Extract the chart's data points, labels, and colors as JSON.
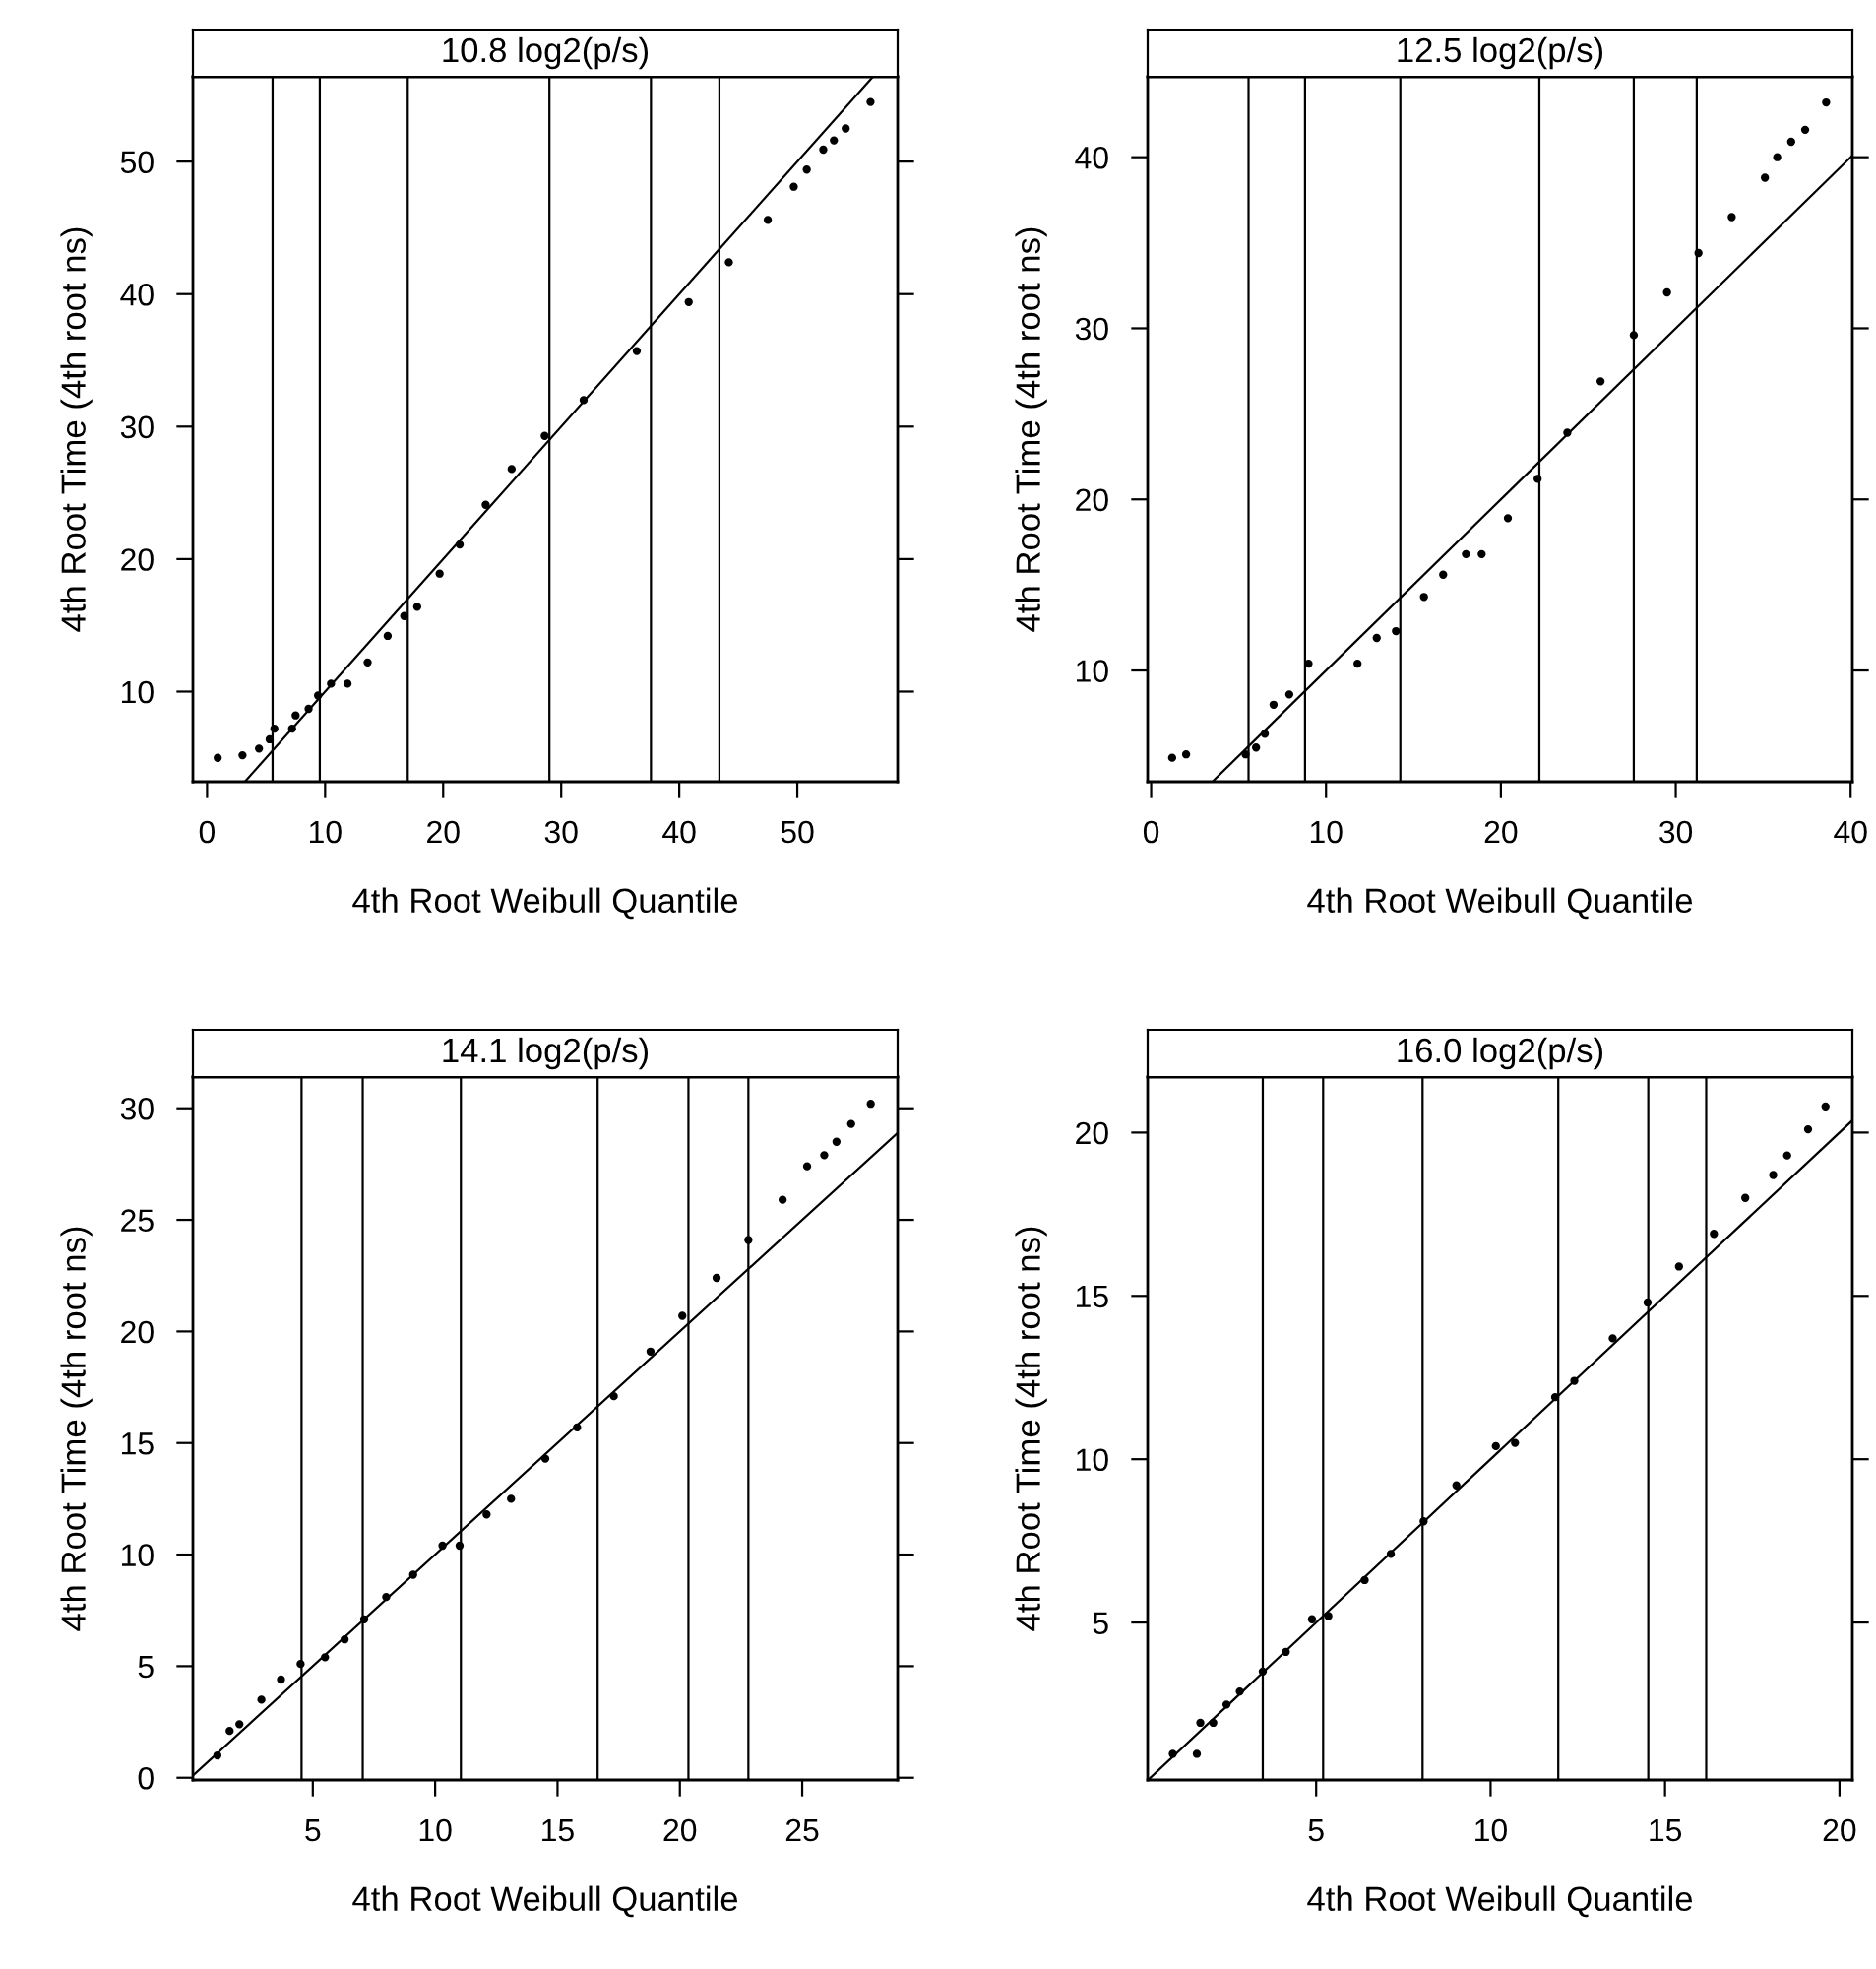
{
  "chart_data": [
    {
      "type": "scatter",
      "title": "10.8 log2(p/s)",
      "xlabel": "4th Root Weibull Quantile",
      "ylabel": "4th Root Time (4th root ns)",
      "xlim": [
        -1.2,
        58.5
      ],
      "ylim": [
        3.2,
        56.4
      ],
      "xticks": [
        0,
        10,
        20,
        30,
        40,
        50
      ],
      "yticks": [
        10,
        20,
        30,
        40,
        50
      ],
      "grid": false,
      "series": [
        {
          "marker": "circle",
          "color": "#000000",
          "x": [
            0.9,
            3.0,
            4.4,
            5.3,
            5.7,
            7.2,
            7.5,
            8.6,
            9.4,
            10.5,
            11.9,
            13.6,
            15.3,
            16.7,
            17.8,
            19.7,
            21.4,
            23.6,
            25.8,
            28.6,
            31.9,
            36.4,
            40.8,
            44.2,
            47.5,
            49.7,
            50.8,
            52.2,
            53.1,
            54.1,
            56.2
          ],
          "values": [
            5.0,
            5.2,
            5.7,
            6.4,
            7.2,
            7.2,
            8.2,
            8.7,
            9.7,
            10.6,
            10.6,
            12.2,
            14.2,
            15.7,
            16.4,
            18.9,
            21.1,
            24.1,
            26.8,
            29.3,
            32.0,
            35.7,
            39.4,
            42.4,
            45.6,
            48.1,
            49.4,
            50.9,
            51.6,
            52.5,
            54.5
          ]
        },
        {
          "type": "line",
          "marker": "none",
          "color": "#000000",
          "x": [
            3.2,
            56.4
          ],
          "values": [
            3.2,
            56.4
          ]
        }
      ],
      "ref_lines": [
        {
          "axis": "x",
          "value": 5.55
        },
        {
          "axis": "x",
          "value": 9.55
        },
        {
          "axis": "x",
          "value": 17.0
        },
        {
          "axis": "x",
          "value": 29.0
        },
        {
          "axis": "x",
          "value": 37.6
        },
        {
          "axis": "x",
          "value": 43.4
        }
      ]
    },
    {
      "type": "scatter",
      "title": "12.5 log2(p/s)",
      "xlabel": "4th Root Weibull Quantile",
      "ylabel": "4th Root Time (4th root ns)",
      "xlim": [
        -0.2,
        40.1
      ],
      "ylim": [
        3.5,
        44.7
      ],
      "xticks": [
        0,
        10,
        20,
        30,
        40
      ],
      "yticks": [
        10,
        20,
        30,
        40
      ],
      "grid": false,
      "series": [
        {
          "marker": "circle",
          "color": "#000000",
          "x": [
            1.2,
            2.0,
            5.4,
            6.0,
            6.5,
            7.0,
            7.9,
            9.0,
            11.8,
            12.9,
            14.0,
            15.6,
            16.7,
            18.0,
            18.9,
            20.4,
            22.1,
            23.8,
            25.7,
            27.6,
            29.5,
            31.3,
            33.2,
            35.1,
            35.8,
            36.6,
            37.4,
            38.6
          ],
          "values": [
            4.9,
            5.1,
            5.1,
            5.5,
            6.3,
            8.0,
            8.6,
            10.4,
            10.4,
            11.9,
            12.3,
            14.3,
            15.6,
            16.8,
            16.8,
            18.9,
            21.2,
            23.9,
            26.9,
            29.6,
            32.1,
            34.4,
            36.5,
            38.8,
            40.0,
            40.9,
            41.6,
            43.2
          ]
        },
        {
          "type": "line",
          "marker": "none",
          "color": "#000000",
          "x": [
            3.5,
            40.1
          ],
          "values": [
            3.5,
            40.1
          ]
        }
      ],
      "ref_lines": [
        {
          "axis": "x",
          "value": 5.57
        },
        {
          "axis": "x",
          "value": 8.8
        },
        {
          "axis": "x",
          "value": 14.25
        },
        {
          "axis": "x",
          "value": 22.2
        },
        {
          "axis": "x",
          "value": 27.6
        },
        {
          "axis": "x",
          "value": 31.2
        }
      ]
    },
    {
      "type": "scatter",
      "title": "14.1 log2(p/s)",
      "xlabel": "4th Root Weibull Quantile",
      "ylabel": "4th Root Time (4th root ns)",
      "xlim": [
        0.1,
        28.9
      ],
      "ylim": [
        -0.1,
        31.4
      ],
      "xticks": [
        5,
        10,
        15,
        20,
        25
      ],
      "yticks": [
        0,
        5,
        10,
        15,
        20,
        25,
        30
      ],
      "grid": false,
      "series": [
        {
          "marker": "circle",
          "color": "#000000",
          "x": [
            1.1,
            1.6,
            2.0,
            2.9,
            3.7,
            4.5,
            5.5,
            6.3,
            7.1,
            8.0,
            9.1,
            10.3,
            11.0,
            12.1,
            13.1,
            14.5,
            15.8,
            17.3,
            18.8,
            20.1,
            21.5,
            22.8,
            24.2,
            25.2,
            25.9,
            26.4,
            27.0,
            27.8
          ],
          "values": [
            1.0,
            2.1,
            2.4,
            3.5,
            4.4,
            5.1,
            5.4,
            6.2,
            7.1,
            8.1,
            9.1,
            10.4,
            10.4,
            11.8,
            12.5,
            14.3,
            15.7,
            17.1,
            19.1,
            20.7,
            22.4,
            24.1,
            25.9,
            27.4,
            27.9,
            28.5,
            29.3,
            30.2
          ]
        },
        {
          "type": "line",
          "marker": "none",
          "color": "#000000",
          "x": [
            0.1,
            28.9
          ],
          "values": [
            0.1,
            28.9
          ]
        }
      ],
      "ref_lines": [
        {
          "axis": "x",
          "value": 4.54
        },
        {
          "axis": "x",
          "value": 7.04
        },
        {
          "axis": "x",
          "value": 11.05
        },
        {
          "axis": "x",
          "value": 16.64
        },
        {
          "axis": "x",
          "value": 20.35
        },
        {
          "axis": "x",
          "value": 22.8
        }
      ]
    },
    {
      "type": "scatter",
      "title": "16.0 log2(p/s)",
      "xlabel": "4th Root Weibull Quantile",
      "ylabel": "4th Root Time (4th root ns)",
      "xlim": [
        0.17,
        20.37
      ],
      "ylim": [
        0.18,
        21.7
      ],
      "xticks": [
        5,
        10,
        15,
        20
      ],
      "yticks": [
        5,
        10,
        15,
        20
      ],
      "grid": false,
      "series": [
        {
          "marker": "circle",
          "color": "#000000",
          "x": [
            0.89,
            1.58,
            1.68,
            2.05,
            2.43,
            2.81,
            3.47,
            4.13,
            4.88,
            5.35,
            6.39,
            7.14,
            8.08,
            9.02,
            10.15,
            10.7,
            11.85,
            12.4,
            13.5,
            14.5,
            15.4,
            16.4,
            17.3,
            18.1,
            18.5,
            19.1,
            19.6
          ],
          "values": [
            0.98,
            0.98,
            1.93,
            1.93,
            2.49,
            2.89,
            3.5,
            4.1,
            5.1,
            5.2,
            6.3,
            7.1,
            8.1,
            9.2,
            10.4,
            10.5,
            11.9,
            12.4,
            13.7,
            14.8,
            15.9,
            16.9,
            18.0,
            18.7,
            19.3,
            20.1,
            20.8
          ]
        },
        {
          "type": "line",
          "marker": "none",
          "color": "#000000",
          "x": [
            0.2,
            20.37
          ],
          "values": [
            0.2,
            20.37
          ]
        }
      ],
      "ref_lines": [
        {
          "axis": "x",
          "value": 3.47
        },
        {
          "axis": "x",
          "value": 5.2
        },
        {
          "axis": "x",
          "value": 8.05
        },
        {
          "axis": "x",
          "value": 11.94
        },
        {
          "axis": "x",
          "value": 14.52
        },
        {
          "axis": "x",
          "value": 16.18
        }
      ]
    }
  ]
}
